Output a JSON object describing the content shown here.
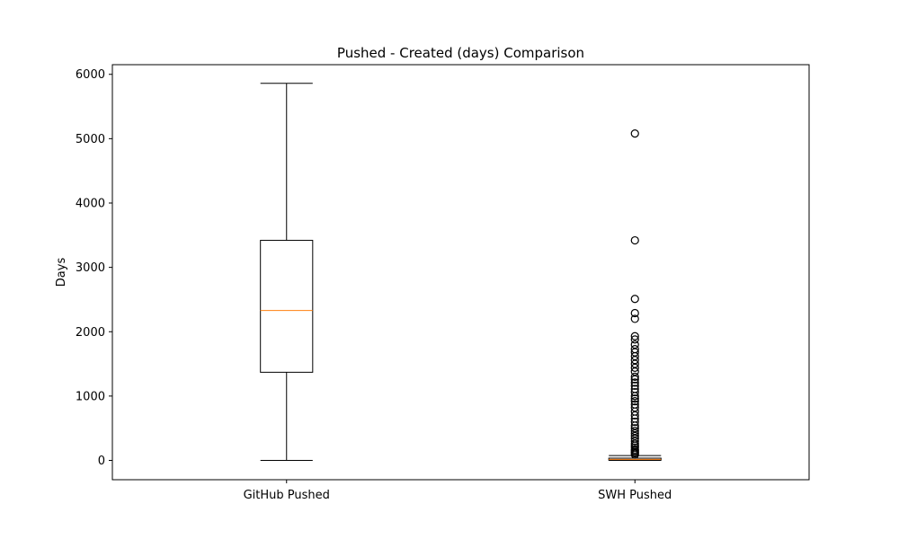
{
  "chart_data": {
    "type": "boxplot",
    "title": "Pushed - Created (days) Comparison",
    "xlabel": "",
    "ylabel": "Days",
    "ylim": [
      -300,
      6150
    ],
    "yticks": [
      0,
      1000,
      2000,
      3000,
      4000,
      5000,
      6000
    ],
    "grid": false,
    "categories": [
      "GitHub Pushed",
      "SWH Pushed"
    ],
    "boxes": [
      {
        "category": "GitHub Pushed",
        "whisker_low": 0,
        "q1": 1370,
        "median": 2330,
        "q3": 3420,
        "whisker_high": 5860,
        "outliers": []
      },
      {
        "category": "SWH Pushed",
        "whisker_low": 0,
        "q1": 5,
        "median": 15,
        "q3": 35,
        "whisker_high": 75,
        "outliers": [
          90,
          110,
          130,
          150,
          170,
          200,
          230,
          260,
          300,
          340,
          380,
          420,
          460,
          500,
          540,
          600,
          650,
          700,
          760,
          820,
          870,
          920,
          960,
          1000,
          1060,
          1110,
          1160,
          1210,
          1260,
          1300,
          1380,
          1440,
          1500,
          1560,
          1620,
          1680,
          1730,
          1800,
          1880,
          1930,
          2200,
          2290,
          2510,
          3420,
          5080
        ]
      }
    ],
    "colors": {
      "box": "#000000",
      "median": "#ff7f0e",
      "outlier": "#000000"
    }
  }
}
